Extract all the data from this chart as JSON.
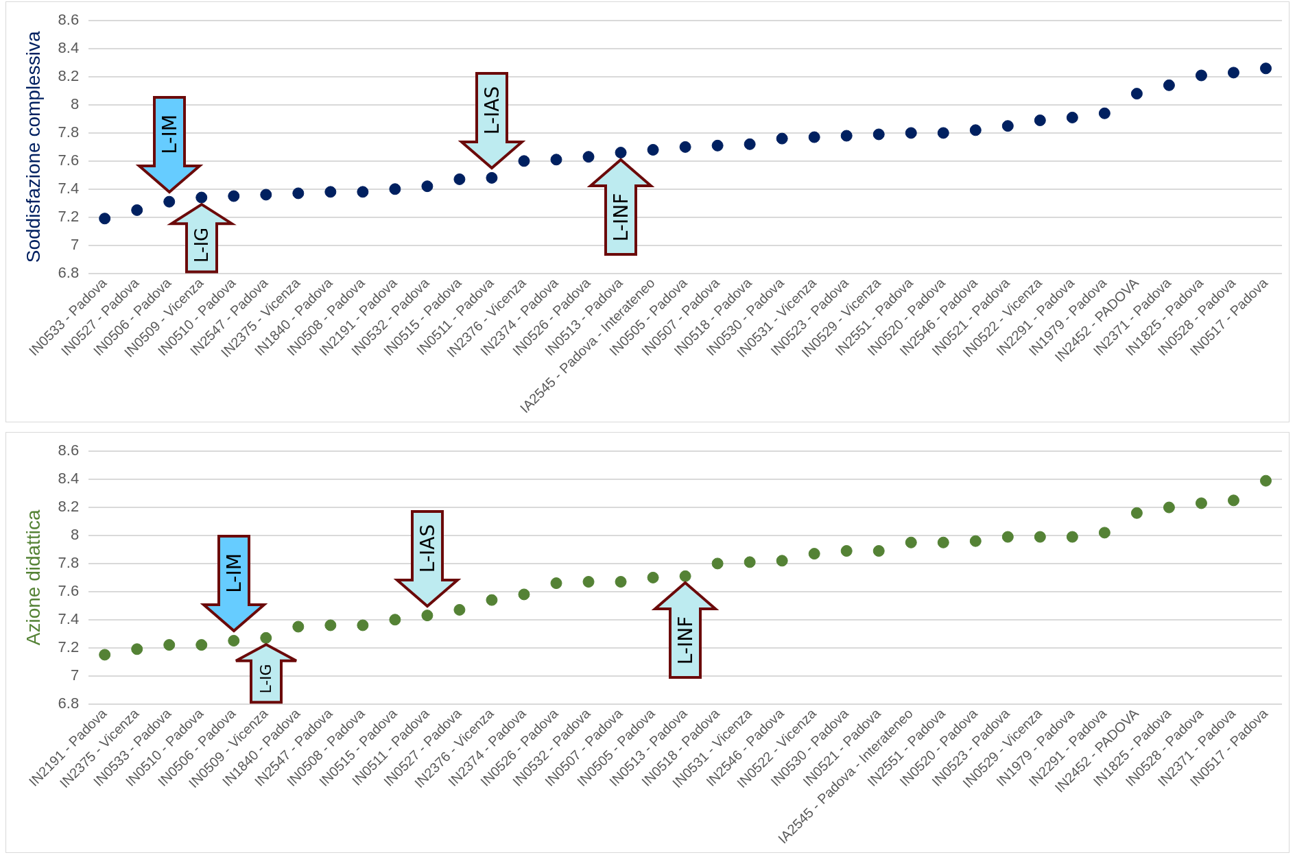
{
  "chart_data": [
    {
      "type": "scatter",
      "ylabel": "Soddisfazione complessiva",
      "marker": "circle",
      "grid": "y",
      "ylim": [
        6.8,
        8.6
      ],
      "yticks": [
        6.8,
        7,
        7.2,
        7.4,
        7.6,
        7.8,
        8,
        8.2,
        8.4,
        8.6
      ],
      "categories": [
        "IN0533 - Padova",
        "IN0527 - Padova",
        "IN0506 - Padova",
        "IN0509 - Vicenza",
        "IN0510 - Padova",
        "IN2547 - Padova",
        "IN2375 - Vicenza",
        "IN1840 - Padova",
        "IN0508 - Padova",
        "IN2191 - Padova",
        "IN0532 - Padova",
        "IN0515 - Padova",
        "IN0511 - Padova",
        "IN2376 - Vicenza",
        "IN2374 - Padova",
        "IN0526 - Padova",
        "IN0513 - Padova",
        "IA2545 - Padova - Interateneo",
        "IN0505 - Padova",
        "IN0507 - Padova",
        "IN0518 - Padova",
        "IN0530 - Padova",
        "IN0531 - Vicenza",
        "IN0523 - Padova",
        "IN0529 - Vicenza",
        "IN2551 - Padova",
        "IN0520 - Padova",
        "IN2546 - Padova",
        "IN0521 - Padova",
        "IN0522 - Vicenza",
        "IN2291 - Padova",
        "IN1979 - Padova",
        "IN2452 - PADOVA",
        "IN2371 - Padova",
        "IN1825 - Padova",
        "IN0528 - Padova",
        "IN0517 - Padova"
      ],
      "series": [
        {
          "color": "#002060",
          "values": [
            7.19,
            7.25,
            7.31,
            7.34,
            7.35,
            7.36,
            7.37,
            7.38,
            7.38,
            7.4,
            7.42,
            7.47,
            7.48,
            7.6,
            7.61,
            7.63,
            7.66,
            7.68,
            7.7,
            7.71,
            7.72,
            7.76,
            7.77,
            7.78,
            7.79,
            7.8,
            7.8,
            7.82,
            7.85,
            7.89,
            7.91,
            7.94,
            8.08,
            8.14,
            8.21,
            8.23,
            8.26
          ]
        }
      ],
      "annotations": [
        {
          "text": "L-IM",
          "x": "IN0506 - Padova",
          "y": 7.31
        },
        {
          "text": "L-IG",
          "x": "IN0509 - Vicenza",
          "y": 7.34
        },
        {
          "text": "L-IAS",
          "x": "IN0511 - Padova",
          "y": 7.48
        },
        {
          "text": "L-INF",
          "x": "IN0513 - Padova",
          "y": 7.66
        }
      ]
    },
    {
      "type": "scatter",
      "ylabel": "Azione didattica",
      "marker": "circle",
      "grid": "y",
      "ylim": [
        6.8,
        8.6
      ],
      "yticks": [
        6.8,
        7,
        7.2,
        7.4,
        7.6,
        7.8,
        8,
        8.2,
        8.4,
        8.6
      ],
      "categories": [
        "IN2191 - Padova",
        "IN2375 - Vicenza",
        "IN0533 - Padova",
        "IN0510 - Padova",
        "IN0506 - Padova",
        "IN0509 - Vicenza",
        "IN1840 - Padova",
        "IN2547 - Padova",
        "IN0508 - Padova",
        "IN0515 - Padova",
        "IN0511 - Padova",
        "IN0527 - Padova",
        "IN2376 - Vicenza",
        "IN2374 - Padova",
        "IN0526 - Padova",
        "IN0532 - Padova",
        "IN0507 - Padova",
        "IN0505 - Padova",
        "IN0513 - Padova",
        "IN0518 - Padova",
        "IN0531 - Vicenza",
        "IN2546 - Padova",
        "IN0522 - Vicenza",
        "IN0530 - Padova",
        "IN0521 - Padova",
        "IA2545 - Padova - Interateneo",
        "IN2551 - Padova",
        "IN0520 - Padova",
        "IN0523 - Padova",
        "IN0529 - Vicenza",
        "IN1979 - Padova",
        "IN2291 - Padova",
        "IN2452 - PADOVA",
        "IN1825 - Padova",
        "IN0528 - Padova",
        "IN2371 - Padova",
        "IN0517 - Padova"
      ],
      "series": [
        {
          "color": "#548235",
          "values": [
            7.15,
            7.19,
            7.22,
            7.22,
            7.25,
            7.27,
            7.35,
            7.36,
            7.36,
            7.4,
            7.43,
            7.47,
            7.54,
            7.58,
            7.66,
            7.67,
            7.67,
            7.7,
            7.71,
            7.8,
            7.81,
            7.82,
            7.87,
            7.89,
            7.89,
            7.95,
            7.95,
            7.96,
            7.99,
            7.99,
            7.99,
            8.02,
            8.16,
            8.2,
            8.23,
            8.25,
            8.39
          ]
        }
      ],
      "annotations": [
        {
          "text": "L-IM",
          "x": "IN0506 - Padova",
          "y": 7.25
        },
        {
          "text": "L-IG",
          "x": "IN0509 - Vicenza",
          "y": 7.27
        },
        {
          "text": "L-IAS",
          "x": "IN0511 - Padova",
          "y": 7.43
        },
        {
          "text": "L-INF",
          "x": "IN0513 - Padova",
          "y": 7.71
        }
      ]
    }
  ]
}
